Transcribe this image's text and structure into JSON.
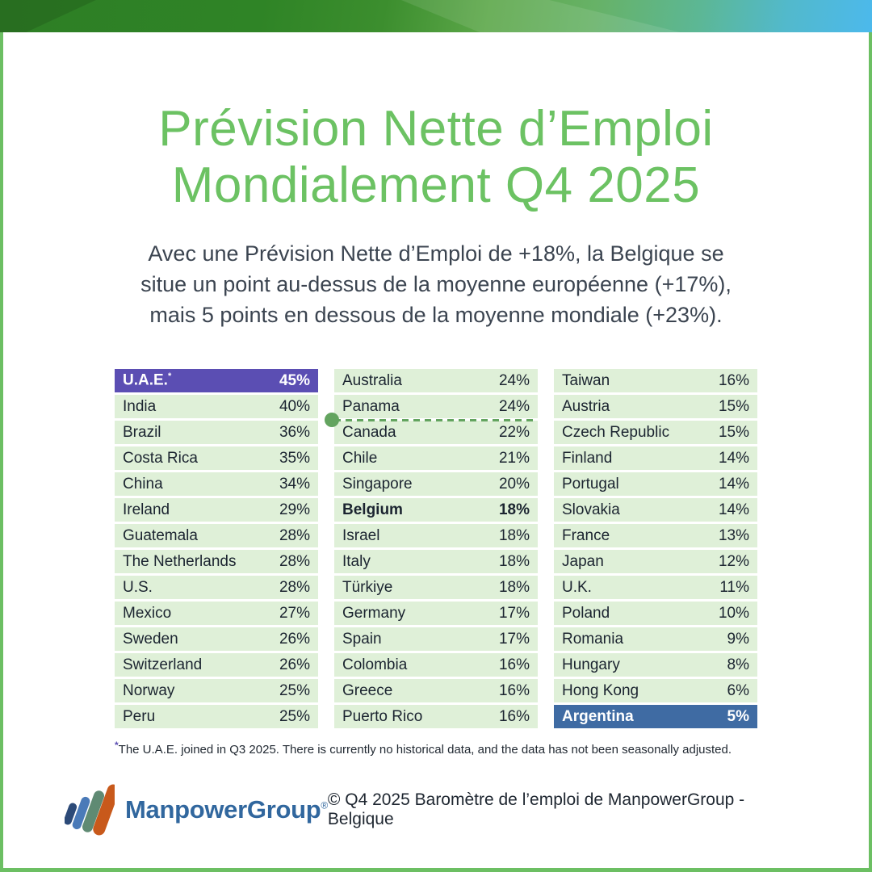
{
  "header": {
    "title_line1": "Prévision Nette d’Emploi",
    "title_line2": "Mondialement Q4 2025"
  },
  "intro": {
    "lines": [
      "Avec une Prévision Nette d’Emploi de +18%, la Belgique se",
      "situe un point au-dessus de la moyenne européenne (+17%),",
      "mais 5 points en dessous de la moyenne mondiale (+23%)."
    ]
  },
  "chart_data": {
    "type": "table",
    "title": "Prévision Nette d’Emploi Mondialement Q4 2025",
    "belgium_forecast": "+18%",
    "european_average": "+17%",
    "global_average": "+23%",
    "columns": [
      {
        "rows": [
          {
            "country": "U.A.E.",
            "value": "45%",
            "note_mark": "*",
            "highlight": "purple"
          },
          {
            "country": "India",
            "value": "40%"
          },
          {
            "country": "Brazil",
            "value": "36%"
          },
          {
            "country": "Costa Rica",
            "value": "35%"
          },
          {
            "country": "China",
            "value": "34%"
          },
          {
            "country": "Ireland",
            "value": "29%"
          },
          {
            "country": "Guatemala",
            "value": "28%"
          },
          {
            "country": "The Netherlands",
            "value": "28%"
          },
          {
            "country": "U.S.",
            "value": "28%"
          },
          {
            "country": "Mexico",
            "value": "27%"
          },
          {
            "country": "Sweden",
            "value": "26%"
          },
          {
            "country": "Switzerland",
            "value": "26%"
          },
          {
            "country": "Norway",
            "value": "25%"
          },
          {
            "country": "Peru",
            "value": "25%"
          }
        ]
      },
      {
        "rows": [
          {
            "country": "Australia",
            "value": "24%"
          },
          {
            "country": "Panama",
            "value": "24%"
          },
          {
            "country": "Canada",
            "value": "22%"
          },
          {
            "country": "Chile",
            "value": "21%"
          },
          {
            "country": "Singapore",
            "value": "20%"
          },
          {
            "country": "Belgium",
            "value": "18%",
            "bold": true
          },
          {
            "country": "Israel",
            "value": "18%"
          },
          {
            "country": "Italy",
            "value": "18%"
          },
          {
            "country": "Türkiye",
            "value": "18%"
          },
          {
            "country": "Germany",
            "value": "17%"
          },
          {
            "country": "Spain",
            "value": "17%"
          },
          {
            "country": "Colombia",
            "value": "16%"
          },
          {
            "country": "Greece",
            "value": "16%"
          },
          {
            "country": "Puerto Rico",
            "value": "16%"
          }
        ]
      },
      {
        "rows": [
          {
            "country": "Taiwan",
            "value": "16%"
          },
          {
            "country": "Austria",
            "value": "15%"
          },
          {
            "country": "Czech Republic",
            "value": "15%"
          },
          {
            "country": "Finland",
            "value": "14%"
          },
          {
            "country": "Portugal",
            "value": "14%"
          },
          {
            "country": "Slovakia",
            "value": "14%"
          },
          {
            "country": "France",
            "value": "13%"
          },
          {
            "country": "Japan",
            "value": "12%"
          },
          {
            "country": "U.K.",
            "value": "11%"
          },
          {
            "country": "Poland",
            "value": "10%"
          },
          {
            "country": "Romania",
            "value": "9%"
          },
          {
            "country": "Hungary",
            "value": "8%"
          },
          {
            "country": "Hong Kong",
            "value": "6%"
          },
          {
            "country": "Argentina",
            "value": "5%",
            "highlight": "blue"
          }
        ]
      }
    ],
    "average_divider": {
      "column_index": 1,
      "after_row_index": 1
    }
  },
  "footnote": {
    "mark": "*",
    "text": "The U.A.E. joined in Q3 2025. There is currently no historical data, and the data has not been seasonally adjusted."
  },
  "footer": {
    "brand": "ManpowerGroup",
    "registered": "®",
    "copyright": "© Q4 2025 Baromètre de l’emploi de ManpowerGroup - Belgique",
    "logo_bar_colors": [
      "#2c4a78",
      "#4a7ab8",
      "#5f8a73",
      "#c8591b"
    ]
  },
  "colors": {
    "title_green": "#6cc263",
    "subtitle_gray": "#3b4450",
    "row_bg": "#dff0d8",
    "row_text": "#1b2430",
    "highlight_purple": "#5b4eb3",
    "highlight_blue": "#3f6ba3",
    "marker_green": "#63a45f",
    "brand_blue": "#31679e",
    "footnote_mark_purple": "#5b4eb3",
    "frame_green": "#6cbf63"
  }
}
